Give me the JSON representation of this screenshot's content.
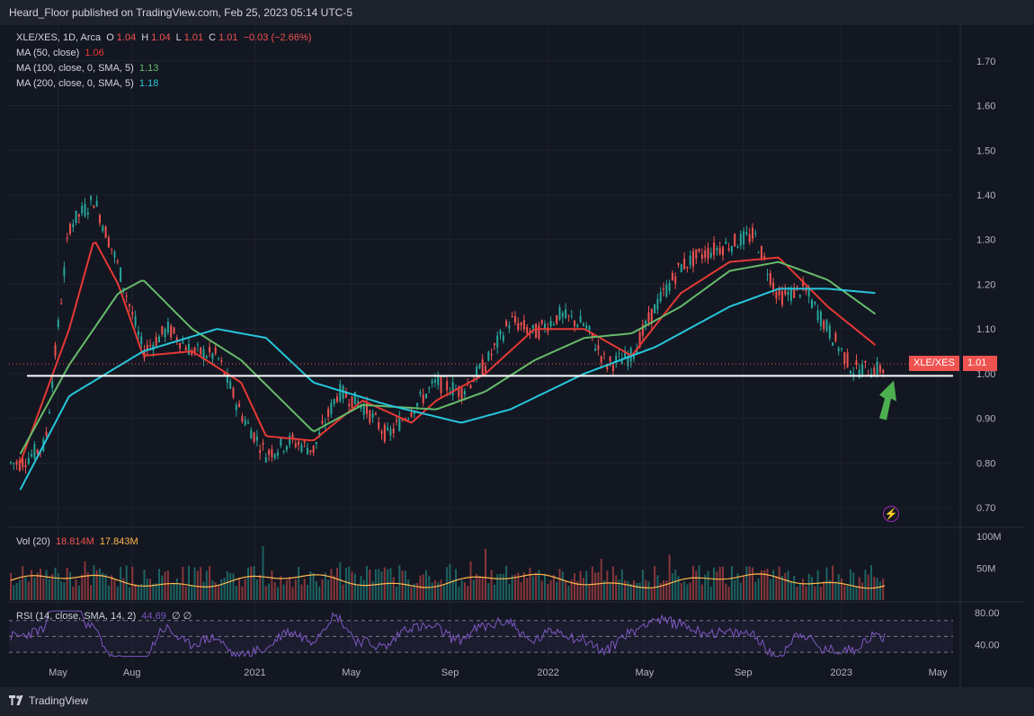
{
  "header": {
    "published": "Heard_Floor published on TradingView.com, Feb 25, 2023 05:14 UTC-5"
  },
  "legend": {
    "symbol": "XLE/XES, 1D, Arca",
    "ohlc": {
      "o_label": "O",
      "o": "1.04",
      "h_label": "H",
      "h": "1.04",
      "l_label": "L",
      "l": "1.01",
      "c_label": "C",
      "c": "1.01",
      "chg": "−0.03 (−2.66%)"
    },
    "ma50": {
      "label": "MA (50, close)",
      "value": "1.06"
    },
    "ma100": {
      "label": "MA (100, close, 0, SMA, 5)",
      "value": "1.13"
    },
    "ma200": {
      "label": "MA (200, close, 0, SMA, 5)",
      "value": "1.18"
    },
    "vol": {
      "label": "Vol (20)",
      "v1": "18.814M",
      "v2": "17.843M"
    },
    "rsi": {
      "label": "RSI (14, close, SMA, 14, 2)",
      "value": "44.69",
      "extra": "∅ ∅"
    }
  },
  "price_axis": {
    "ticks": [
      "1.70",
      "1.60",
      "1.50",
      "1.40",
      "1.30",
      "1.20",
      "1.10",
      "1.00",
      "0.90",
      "0.80",
      "0.70"
    ]
  },
  "vol_axis": {
    "ticks": [
      "100M",
      "50M"
    ]
  },
  "rsi_axis": {
    "ticks": [
      "80.00",
      "40.00"
    ]
  },
  "time_axis": {
    "ticks": [
      "May",
      "Aug",
      "2021",
      "May",
      "Sep",
      "2022",
      "May",
      "Sep",
      "2023",
      "May"
    ]
  },
  "price_tag": {
    "symbol": "XLE/XES",
    "value": "1.01"
  },
  "colors": {
    "up": "#26a69a",
    "down": "#ef5350",
    "ma50": "#e53935",
    "ma100": "#66bb6a",
    "ma200": "#26c6da",
    "rsi": "#7e57c2",
    "vol_ma": "#ffb74d",
    "support": "#ffffff",
    "arrow": "#4caf50"
  },
  "footer": {
    "brand": "TradingView"
  },
  "chart_data": {
    "type": "line",
    "title": "XLE/XES, 1D, Arca",
    "support_level": 0.995,
    "ylim": [
      0.66,
      1.78
    ],
    "series": [
      {
        "name": "XLE/XES",
        "x": [
          "2020-03",
          "2020-04",
          "2020-05",
          "2020-06",
          "2020-07",
          "2020-08",
          "2020-09",
          "2020-10",
          "2020-11",
          "2020-12",
          "2021-01",
          "2021-02",
          "2021-03",
          "2021-04",
          "2021-05",
          "2021-06",
          "2021-07",
          "2021-08",
          "2021-09",
          "2021-10",
          "2021-11",
          "2021-12",
          "2022-01",
          "2022-02",
          "2022-03",
          "2022-04",
          "2022-05",
          "2022-06",
          "2022-07",
          "2022-08",
          "2022-09",
          "2022-10",
          "2022-11",
          "2022-12",
          "2023-01",
          "2023-02"
        ],
        "values": [
          0.8,
          0.84,
          1.33,
          1.39,
          1.24,
          1.05,
          1.1,
          1.05,
          1.04,
          0.91,
          0.82,
          0.85,
          0.83,
          0.96,
          0.93,
          0.86,
          0.92,
          0.98,
          0.96,
          1.02,
          1.12,
          1.09,
          1.13,
          1.11,
          1.02,
          1.04,
          1.15,
          1.24,
          1.27,
          1.29,
          1.31,
          1.17,
          1.19,
          1.1,
          1.01,
          1.01
        ]
      },
      {
        "name": "MA (50, close)",
        "x": [
          "2020-03",
          "2020-05",
          "2020-06",
          "2020-07",
          "2020-08",
          "2020-10",
          "2020-12",
          "2021-01",
          "2021-03",
          "2021-05",
          "2021-07",
          "2021-08",
          "2021-10",
          "2021-12",
          "2022-02",
          "2022-04",
          "2022-06",
          "2022-08",
          "2022-10",
          "2022-12",
          "2023-02"
        ],
        "values": [
          0.8,
          1.1,
          1.3,
          1.2,
          1.04,
          1.05,
          0.98,
          0.86,
          0.85,
          0.94,
          0.89,
          0.94,
          1.0,
          1.1,
          1.1,
          1.04,
          1.18,
          1.25,
          1.26,
          1.15,
          1.06
        ]
      },
      {
        "name": "MA (100, close, 0, SMA, 5)",
        "x": [
          "2020-03",
          "2020-05",
          "2020-07",
          "2020-08",
          "2020-10",
          "2020-12",
          "2021-03",
          "2021-05",
          "2021-08",
          "2021-10",
          "2021-12",
          "2022-02",
          "2022-04",
          "2022-06",
          "2022-08",
          "2022-10",
          "2022-12",
          "2023-02"
        ],
        "values": [
          0.82,
          1.02,
          1.18,
          1.21,
          1.1,
          1.03,
          0.87,
          0.93,
          0.92,
          0.96,
          1.03,
          1.08,
          1.09,
          1.15,
          1.23,
          1.25,
          1.21,
          1.13
        ]
      },
      {
        "name": "MA (200, close, 0, SMA, 5)",
        "x": [
          "2020-03",
          "2020-05",
          "2020-08",
          "2020-11",
          "2021-01",
          "2021-03",
          "2021-06",
          "2021-09",
          "2021-11",
          "2022-02",
          "2022-05",
          "2022-08",
          "2022-10",
          "2022-12",
          "2023-02"
        ],
        "values": [
          0.74,
          0.95,
          1.05,
          1.1,
          1.08,
          0.98,
          0.93,
          0.89,
          0.92,
          1.0,
          1.06,
          1.15,
          1.19,
          1.19,
          1.18
        ]
      }
    ],
    "rsi": {
      "name": "RSI (14, close, SMA, 14, 2)",
      "levels": [
        70,
        50,
        30
      ],
      "ylim": [
        20,
        90
      ],
      "last": 44.69
    },
    "volume": {
      "name": "Vol (20)",
      "last": "18.814M",
      "ma": "17.843M"
    },
    "xlabel": "",
    "ylabel": ""
  }
}
